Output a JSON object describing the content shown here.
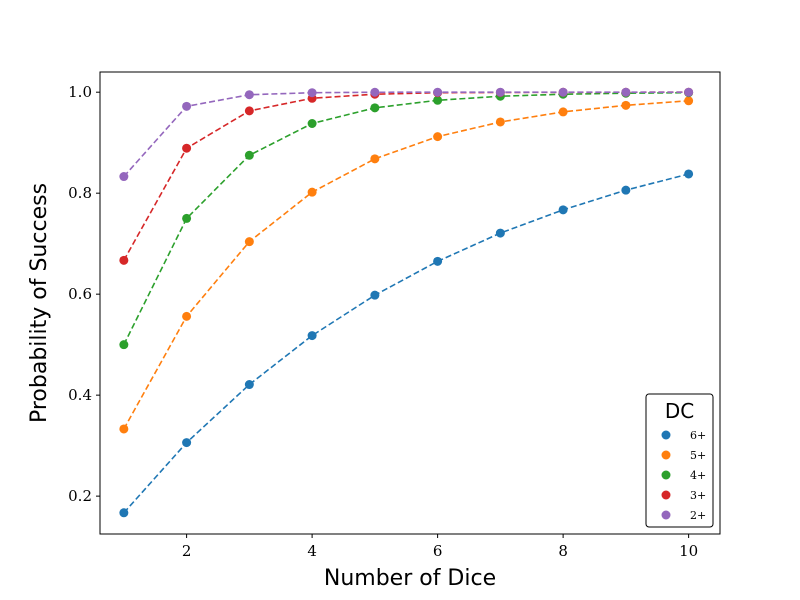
{
  "chart_data": {
    "type": "line",
    "title": "",
    "xlabel": "Number of Dice",
    "ylabel": "Probability of Success",
    "x": [
      1,
      2,
      3,
      4,
      5,
      6,
      7,
      8,
      9,
      10
    ],
    "xlim": [
      0.62,
      10.5
    ],
    "ylim": [
      0.125,
      1.04
    ],
    "xticks": [
      2,
      4,
      6,
      8,
      10
    ],
    "xtick_labels": [
      "2",
      "4",
      "6",
      "8",
      "10"
    ],
    "yticks": [
      0.2,
      0.4,
      0.6,
      0.8,
      1.0
    ],
    "ytick_labels": [
      "0.2",
      "0.4",
      "0.6",
      "0.8",
      "1.0"
    ],
    "grid": false,
    "line_style": "dashed",
    "marker": "circle",
    "legend": {
      "title": "DC",
      "placement": "bottom-right"
    },
    "series": [
      {
        "name": "6+",
        "color": "#1f77b4",
        "values": [
          0.167,
          0.306,
          0.421,
          0.518,
          0.598,
          0.665,
          0.721,
          0.767,
          0.806,
          0.838
        ]
      },
      {
        "name": "5+",
        "color": "#ff7f0e",
        "values": [
          0.333,
          0.556,
          0.704,
          0.802,
          0.868,
          0.912,
          0.941,
          0.961,
          0.974,
          0.983
        ]
      },
      {
        "name": "4+",
        "color": "#2ca02c",
        "values": [
          0.5,
          0.75,
          0.875,
          0.938,
          0.969,
          0.984,
          0.992,
          0.996,
          0.998,
          0.999
        ]
      },
      {
        "name": "3+",
        "color": "#d62728",
        "values": [
          0.667,
          0.889,
          0.963,
          0.988,
          0.996,
          0.999,
          0.9995,
          0.9998,
          0.9999,
          1.0
        ]
      },
      {
        "name": "2+",
        "color": "#9467bd",
        "values": [
          0.833,
          0.972,
          0.995,
          0.999,
          0.9999,
          1.0,
          1.0,
          1.0,
          1.0,
          1.0
        ]
      }
    ]
  }
}
